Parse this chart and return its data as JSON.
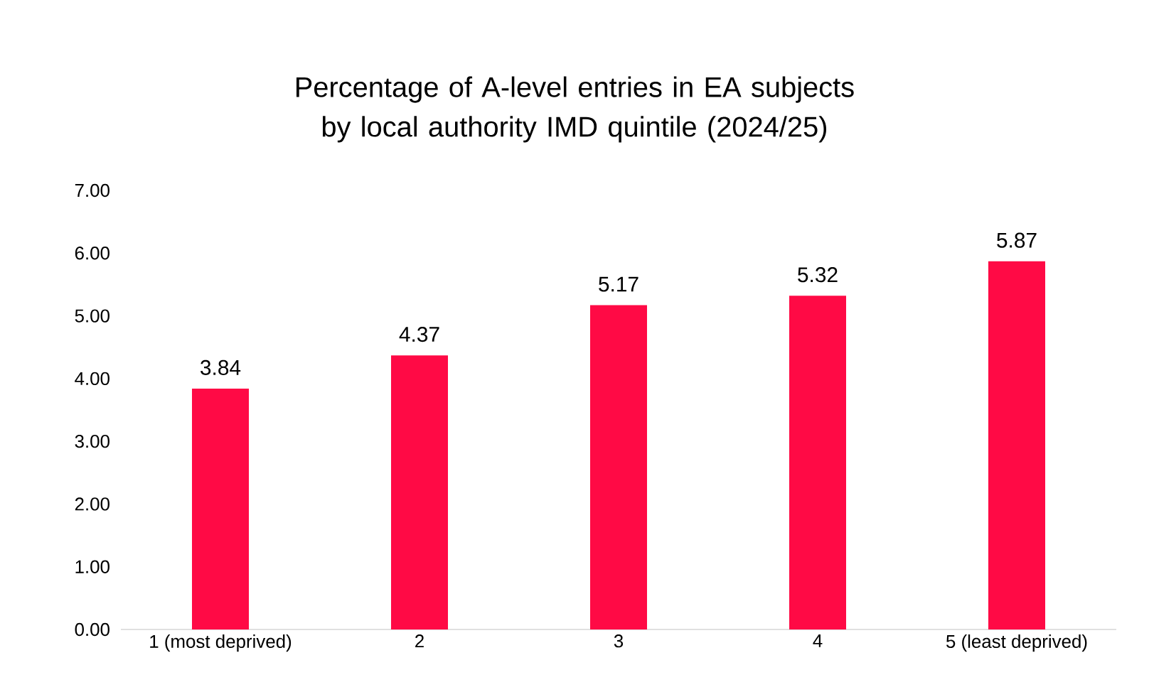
{
  "chart_data": {
    "type": "bar",
    "title": "Percentage of A-level entries in EA subjects by local authority IMD quintile (2024/25)",
    "categories": [
      "1 (most deprived)",
      "2",
      "3",
      "4",
      "5 (least deprived)"
    ],
    "values": [
      3.84,
      4.37,
      5.17,
      5.32,
      5.87
    ],
    "color": "#ff0a45",
    "ylim": [
      0,
      7
    ],
    "yticks": [
      {
        "value": 0,
        "label": "0.00"
      },
      {
        "value": 1,
        "label": "1.00"
      },
      {
        "value": 2,
        "label": "2.00"
      },
      {
        "value": 3,
        "label": "3.00"
      },
      {
        "value": 4,
        "label": "4.00"
      },
      {
        "value": 5,
        "label": "5.00"
      },
      {
        "value": 6,
        "label": "6.00"
      },
      {
        "value": 7,
        "label": "7.00"
      }
    ],
    "data_labels": true
  }
}
